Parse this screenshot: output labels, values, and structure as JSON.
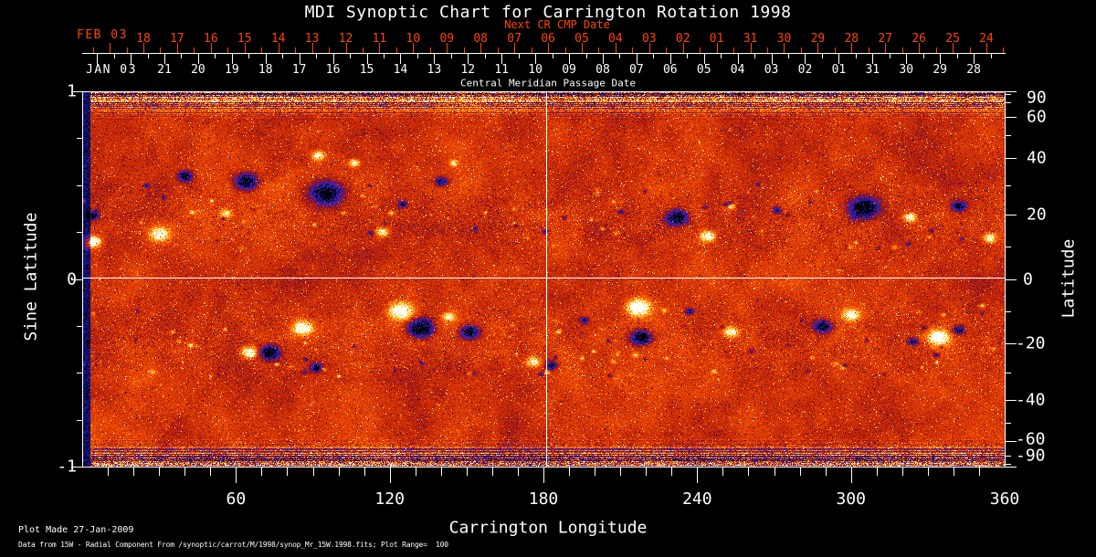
{
  "title": "MDI Synoptic Chart for Carrington Rotation 1998",
  "top_axis": {
    "next_cr_label": "Next CR CMP Date",
    "red_month_label": "FEB 03",
    "red_days": [
      "18",
      "17",
      "16",
      "15",
      "14",
      "13",
      "12",
      "11",
      "10",
      "09",
      "08",
      "07",
      "06",
      "05",
      "04",
      "03",
      "02",
      "01",
      "31",
      "30",
      "29",
      "28",
      "27",
      "26",
      "25",
      "24"
    ],
    "white_month_label": "JAN 03",
    "white_days": [
      "21",
      "20",
      "19",
      "18",
      "17",
      "16",
      "15",
      "14",
      "13",
      "12",
      "11",
      "10",
      "09",
      "08",
      "07",
      "06",
      "05",
      "04",
      "03",
      "02",
      "01",
      "31",
      "30",
      "29",
      "28"
    ],
    "axis_title": "Central Meridian Passage Date"
  },
  "x_axis": {
    "title": "Carrington Longitude",
    "ticks": [
      "60",
      "120",
      "180",
      "240",
      "300",
      "360"
    ]
  },
  "y_left": {
    "title": "Sine Latitude",
    "ticks": [
      "1",
      "0",
      "-1"
    ]
  },
  "y_right": {
    "title": "Latitude",
    "ticks": [
      "90",
      "60",
      "40",
      "20",
      "0",
      "-20",
      "-40",
      "-60",
      "-90"
    ]
  },
  "footer": {
    "line1": "Plot Made 27-Jan-2009",
    "line2": "Data from 15W - Radial Component From /synoptic/carrot/M/1998/synop_Mr_15W.1998.fits; Plot Range=  100"
  },
  "colors": {
    "background": "#000000",
    "text": "#ffffff",
    "next_cr_axis": "#ff4400",
    "crosshair": "#ffffff",
    "palette": [
      {
        "t": 0.0,
        "c": [
          0,
          0,
          0
        ]
      },
      {
        "t": 0.1,
        "c": [
          8,
          4,
          50
        ]
      },
      {
        "t": 0.2,
        "c": [
          30,
          30,
          165
        ]
      },
      {
        "t": 0.3,
        "c": [
          60,
          40,
          190
        ]
      },
      {
        "t": 0.36,
        "c": [
          95,
          20,
          130
        ]
      },
      {
        "t": 0.42,
        "c": [
          130,
          15,
          40
        ]
      },
      {
        "t": 0.5,
        "c": [
          190,
          35,
          5
        ]
      },
      {
        "t": 0.6,
        "c": [
          235,
          70,
          5
        ]
      },
      {
        "t": 0.7,
        "c": [
          255,
          120,
          10
        ]
      },
      {
        "t": 0.8,
        "c": [
          255,
          180,
          40
        ]
      },
      {
        "t": 0.88,
        "c": [
          255,
          230,
          95
        ]
      },
      {
        "t": 1.0,
        "c": [
          255,
          255,
          255
        ]
      }
    ]
  },
  "chart_data": {
    "type": "heatmap",
    "title": "MDI Synoptic Chart for Carrington Rotation 1998",
    "carrington_rotation": 1998,
    "xlabel": "Carrington Longitude",
    "x_range": [
      0,
      360
    ],
    "ylabel_left": "Sine Latitude",
    "y_range_sine_latitude": [
      -1,
      1
    ],
    "ylabel_right": "Latitude",
    "y_range_latitude": [
      -90,
      90
    ],
    "value_plot_range_gauss": [
      -100,
      100
    ],
    "crosshair": {
      "longitude": 180,
      "sine_latitude": 0
    },
    "cmp_dates_this_rotation": {
      "month_year": "JAN 03",
      "days_left_to_right": [
        "21",
        "20",
        "19",
        "18",
        "17",
        "16",
        "15",
        "14",
        "13",
        "12",
        "11",
        "10",
        "09",
        "08",
        "07",
        "06",
        "05",
        "04",
        "03",
        "02",
        "01",
        "31",
        "30",
        "29",
        "28"
      ]
    },
    "cmp_dates_next_rotation": {
      "month_year": "FEB 03",
      "days_left_to_right": [
        "18",
        "17",
        "16",
        "15",
        "14",
        "13",
        "12",
        "11",
        "10",
        "09",
        "08",
        "07",
        "06",
        "05",
        "04",
        "03",
        "02",
        "01",
        "31",
        "30",
        "29",
        "28",
        "27",
        "26",
        "25",
        "24"
      ]
    },
    "active_regions": [
      {
        "lon": 4,
        "slat": 0.34,
        "pol": -1,
        "r_deg": 2.1,
        "s": 1.3
      },
      {
        "lon": 4,
        "slat": 0.2,
        "pol": 1,
        "r_deg": 3.0,
        "s": 1.5
      },
      {
        "lon": 30,
        "slat": 0.24,
        "pol": 1,
        "r_deg": 3.9,
        "s": 1.1
      },
      {
        "lon": 40,
        "slat": 0.55,
        "pol": -1,
        "r_deg": 2.9,
        "s": 1.2
      },
      {
        "lon": 64,
        "slat": 0.52,
        "pol": -1,
        "r_deg": 4.6,
        "s": 1.3
      },
      {
        "lon": 56,
        "slat": 0.35,
        "pol": 1,
        "r_deg": 2.5,
        "s": 0.8
      },
      {
        "lon": 95,
        "slat": 0.46,
        "pol": -1,
        "r_deg": 6.1,
        "s": 1.4
      },
      {
        "lon": 92,
        "slat": 0.66,
        "pol": 1,
        "r_deg": 2.5,
        "s": 1.1
      },
      {
        "lon": 106,
        "slat": 0.62,
        "pol": 1,
        "r_deg": 2.1,
        "s": 1.0
      },
      {
        "lon": 117,
        "slat": 0.25,
        "pol": 1,
        "r_deg": 2.5,
        "s": 1.0
      },
      {
        "lon": 125,
        "slat": 0.4,
        "pol": -1,
        "r_deg": 1.8,
        "s": 0.9
      },
      {
        "lon": 140,
        "slat": 0.52,
        "pol": -1,
        "r_deg": 2.5,
        "s": 1.0
      },
      {
        "lon": 145,
        "slat": 0.62,
        "pol": 1,
        "r_deg": 1.8,
        "s": 0.8
      },
      {
        "lon": 25,
        "slat": 0.5,
        "pol": -1,
        "r_deg": 1.1,
        "s": 0.8
      },
      {
        "lon": 188,
        "slat": 0.33,
        "pol": -1,
        "r_deg": 1.0,
        "s": 0.8
      },
      {
        "lon": 203,
        "slat": 0.27,
        "pol": 1,
        "r_deg": 0.8,
        "s": 0.7
      },
      {
        "lon": 210,
        "slat": 0.36,
        "pol": -1,
        "r_deg": 1.1,
        "s": 0.8
      },
      {
        "lon": 232,
        "slat": 0.33,
        "pol": -1,
        "r_deg": 4.3,
        "s": 1.3
      },
      {
        "lon": 244,
        "slat": 0.23,
        "pol": 1,
        "r_deg": 2.9,
        "s": 1.3
      },
      {
        "lon": 253,
        "slat": 0.39,
        "pol": 1,
        "r_deg": 1.8,
        "s": 0.8
      },
      {
        "lon": 271,
        "slat": 0.37,
        "pol": -1,
        "r_deg": 1.8,
        "s": 0.8
      },
      {
        "lon": 305,
        "slat": 0.38,
        "pol": -1,
        "r_deg": 5.7,
        "s": 1.4
      },
      {
        "lon": 323,
        "slat": 0.33,
        "pol": 1,
        "r_deg": 2.5,
        "s": 1.1
      },
      {
        "lon": 342,
        "slat": 0.39,
        "pol": -1,
        "r_deg": 2.9,
        "s": 1.0
      },
      {
        "lon": 354,
        "slat": 0.22,
        "pol": 1,
        "r_deg": 2.5,
        "s": 1.1
      },
      {
        "lon": 65,
        "slat": -0.39,
        "pol": 1,
        "r_deg": 3.2,
        "s": 1.2
      },
      {
        "lon": 73,
        "slat": -0.39,
        "pol": -1,
        "r_deg": 3.9,
        "s": 1.3
      },
      {
        "lon": 86,
        "slat": -0.26,
        "pol": 1,
        "r_deg": 3.9,
        "s": 1.3
      },
      {
        "lon": 91,
        "slat": -0.47,
        "pol": -1,
        "r_deg": 2.5,
        "s": 1.0
      },
      {
        "lon": 124,
        "slat": -0.17,
        "pol": 1,
        "r_deg": 4.6,
        "s": 1.4
      },
      {
        "lon": 132,
        "slat": -0.26,
        "pol": -1,
        "r_deg": 5.0,
        "s": 1.5
      },
      {
        "lon": 151,
        "slat": -0.28,
        "pol": -1,
        "r_deg": 3.6,
        "s": 1.2
      },
      {
        "lon": 143,
        "slat": -0.2,
        "pol": 1,
        "r_deg": 2.5,
        "s": 0.9
      },
      {
        "lon": 176,
        "slat": -0.44,
        "pol": 1,
        "r_deg": 2.9,
        "s": 1.0
      },
      {
        "lon": 183,
        "slat": -0.46,
        "pol": -1,
        "r_deg": 2.5,
        "s": 0.9
      },
      {
        "lon": 196,
        "slat": -0.22,
        "pol": -1,
        "r_deg": 1.8,
        "s": 0.8
      },
      {
        "lon": 217,
        "slat": -0.15,
        "pol": 1,
        "r_deg": 4.6,
        "s": 1.5
      },
      {
        "lon": 218,
        "slat": -0.31,
        "pol": -1,
        "r_deg": 3.9,
        "s": 1.4
      },
      {
        "lon": 237,
        "slat": -0.17,
        "pol": -1,
        "r_deg": 1.8,
        "s": 0.8
      },
      {
        "lon": 253,
        "slat": -0.28,
        "pol": 1,
        "r_deg": 2.9,
        "s": 1.0
      },
      {
        "lon": 289,
        "slat": -0.25,
        "pol": -1,
        "r_deg": 3.6,
        "s": 1.2
      },
      {
        "lon": 300,
        "slat": -0.19,
        "pol": 1,
        "r_deg": 3.2,
        "s": 1.1
      },
      {
        "lon": 334,
        "slat": -0.31,
        "pol": 1,
        "r_deg": 4.3,
        "s": 1.4
      },
      {
        "lon": 324,
        "slat": -0.33,
        "pol": -1,
        "r_deg": 2.1,
        "s": 0.9
      },
      {
        "lon": 342,
        "slat": -0.27,
        "pol": -1,
        "r_deg": 2.5,
        "s": 1.0
      },
      {
        "lon": 351,
        "slat": -0.14,
        "pol": 1,
        "r_deg": 1.1,
        "s": 0.8
      }
    ],
    "texture": {
      "seed": 20090127,
      "scatter_seed": 7,
      "scatter_count": 130,
      "background_bias": 0.07
    }
  }
}
